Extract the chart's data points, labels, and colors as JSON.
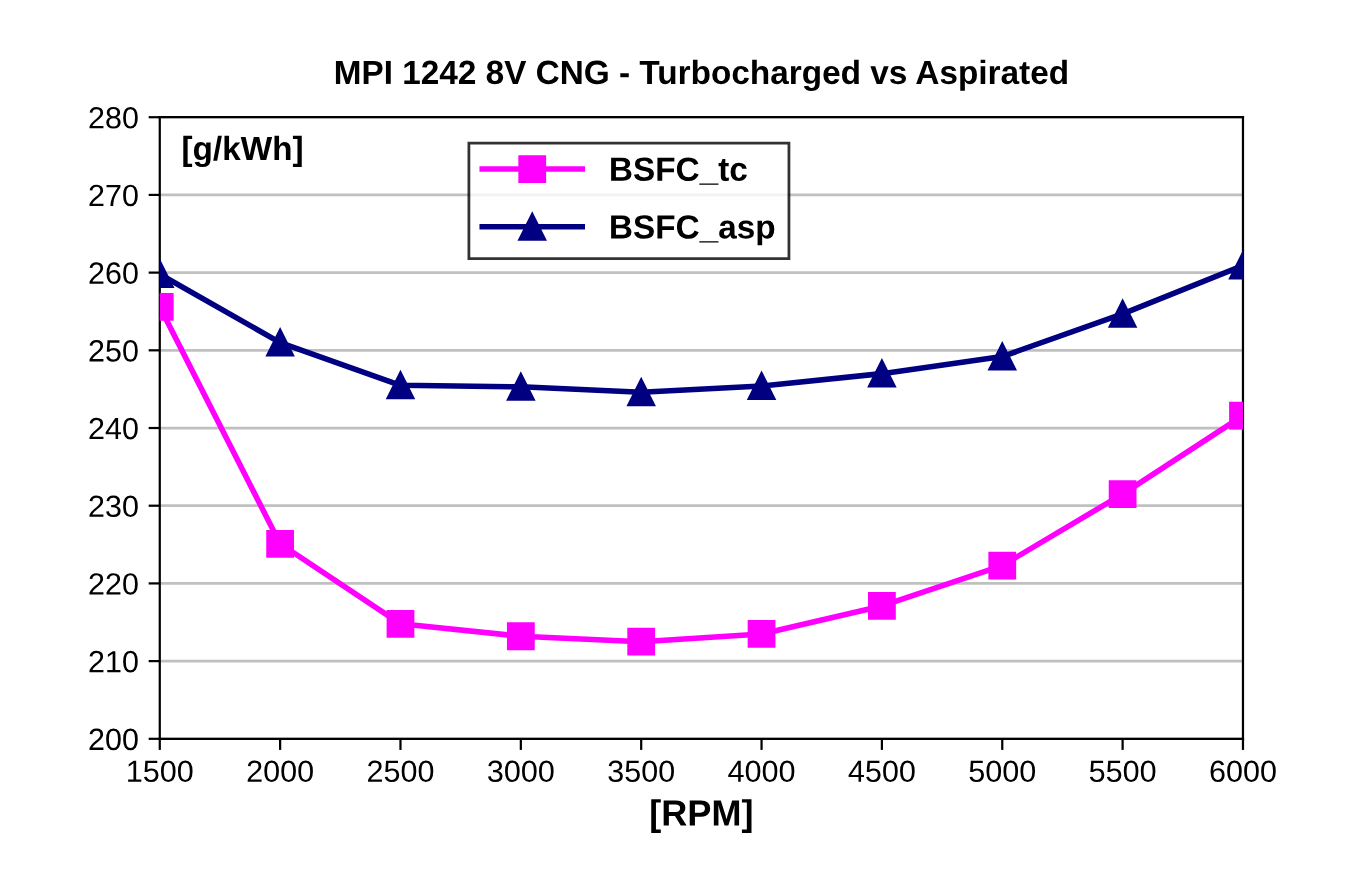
{
  "chart_data": {
    "type": "line",
    "title": "MPI 1242 8V CNG - Turbocharged vs Aspirated",
    "xlabel": "[RPM]",
    "ylabel": "[g/kWh]",
    "x": [
      1500,
      2000,
      2500,
      3000,
      3500,
      4000,
      4500,
      5000,
      5500,
      6000
    ],
    "series": [
      {
        "name": "BSFC_tc",
        "color": "#ff00ff",
        "marker": "square",
        "values": [
          255.6,
          225.1,
          214.8,
          213.2,
          212.5,
          213.5,
          217.1,
          222.3,
          231.5,
          241.6
        ]
      },
      {
        "name": "BSFC_asp",
        "color": "#000080",
        "marker": "triangle",
        "values": [
          259.8,
          251.0,
          245.5,
          245.3,
          244.6,
          245.4,
          247.0,
          249.2,
          254.7,
          260.9
        ]
      }
    ],
    "xlim": [
      1500,
      6000
    ],
    "xticks": [
      1500,
      2000,
      2500,
      3000,
      3500,
      4000,
      4500,
      5000,
      5500,
      6000
    ],
    "ylim": [
      200,
      280
    ],
    "yticks": [
      200,
      210,
      220,
      230,
      240,
      250,
      260,
      270,
      280
    ],
    "grid": "y",
    "legend": "top",
    "line_style": "solid"
  }
}
